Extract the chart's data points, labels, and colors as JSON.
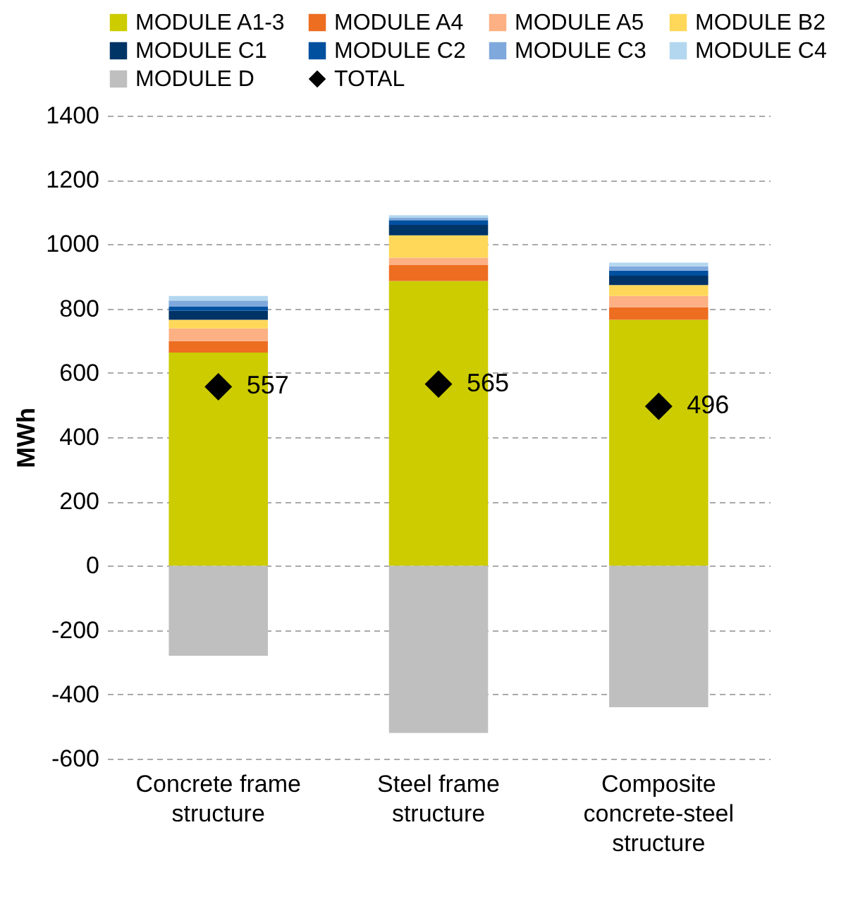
{
  "chart_data": {
    "type": "bar",
    "stacked": true,
    "ylabel": "MWh",
    "categories": [
      "Concrete frame structure",
      "Steel frame structure",
      "Composite concrete-steel structure"
    ],
    "series": [
      {
        "name": "MODULE A1-3",
        "color": "#cccc00",
        "values": [
          663,
          886,
          765
        ]
      },
      {
        "name": "MODULE A4",
        "color": "#ed6d21",
        "values": [
          36,
          49,
          39
        ]
      },
      {
        "name": "MODULE A5",
        "color": "#fcb083",
        "values": [
          39,
          23,
          35
        ]
      },
      {
        "name": "MODULE B2",
        "color": "#ffd85a",
        "values": [
          27,
          70,
          34
        ]
      },
      {
        "name": "MODULE C1",
        "color": "#003366",
        "values": [
          28,
          32,
          29
        ]
      },
      {
        "name": "MODULE C2",
        "color": "#0050a0",
        "values": [
          14,
          15,
          16
        ]
      },
      {
        "name": "MODULE C3",
        "color": "#7fa8dc",
        "values": [
          18,
          7,
          13
        ]
      },
      {
        "name": "MODULE C4",
        "color": "#b3d7ef",
        "values": [
          14,
          8,
          12
        ]
      },
      {
        "name": "MODULE D",
        "color": "#bfbfbf",
        "values": [
          -280,
          -520,
          -440
        ]
      },
      {
        "name": "TOTAL",
        "type": "scatter",
        "marker": "diamond",
        "color": "#000000",
        "x": [
          "Concrete frame structure",
          "Steel frame structure",
          "Composite concrete-steel structure"
        ],
        "values": [
          557,
          565,
          496
        ],
        "value_labels": [
          "557",
          "565",
          "496"
        ]
      }
    ],
    "ylim": [
      -600,
      1400
    ],
    "yticks": [
      -600,
      -400,
      -200,
      0,
      200,
      400,
      600,
      800,
      1000,
      1200,
      1400
    ],
    "grid": "y",
    "legend": "top"
  }
}
